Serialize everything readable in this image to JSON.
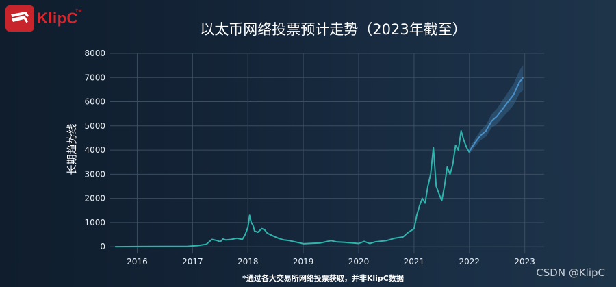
{
  "brand": {
    "name": "KlipC"
  },
  "watermark": "CSDN @KlipC",
  "colors": {
    "line": "#2fb3ad",
    "forecast": "#4a90c8",
    "band": "#3b6e98",
    "grid": "#3a4d61",
    "text": "#e8edf2",
    "brand": "#d8262e"
  },
  "chart_data": {
    "type": "line",
    "title": "以太币网络投票预计走势（2023年截至）",
    "ylabel": "长期趋势线",
    "xlabel": "",
    "footnote": "*通过各大交易所网络投票获取，并非KlipC数据",
    "x_ticks": [
      "2016",
      "2017",
      "2018",
      "2019",
      "2020",
      "2021",
      "2022",
      "2023"
    ],
    "y_ticks": [
      "0",
      "1000",
      "2000",
      "3000",
      "4000",
      "5000",
      "6000",
      "7000",
      "8000"
    ],
    "xlim": [
      2015.5,
      2023.35
    ],
    "ylim": [
      -280,
      8000
    ],
    "grid": true,
    "series": [
      {
        "role": "historical",
        "x": [
          2015.6,
          2016.0,
          2016.5,
          2016.9,
          2017.1,
          2017.25,
          2017.35,
          2017.45,
          2017.5,
          2017.55,
          2017.6,
          2017.7,
          2017.8,
          2017.9,
          2017.95,
          2018.0,
          2018.03,
          2018.06,
          2018.09,
          2018.12,
          2018.18,
          2018.25,
          2018.3,
          2018.35,
          2018.45,
          2018.55,
          2018.65,
          2018.75,
          2018.85,
          2018.95,
          2019.0,
          2019.15,
          2019.3,
          2019.4,
          2019.5,
          2019.6,
          2019.75,
          2019.9,
          2020.0,
          2020.1,
          2020.2,
          2020.3,
          2020.5,
          2020.65,
          2020.8,
          2020.9,
          2021.0,
          2021.05,
          2021.1,
          2021.15,
          2021.2,
          2021.25,
          2021.3,
          2021.35,
          2021.4,
          2021.45,
          2021.5,
          2021.55,
          2021.6,
          2021.65,
          2021.7,
          2021.75,
          2021.8,
          2021.85,
          2021.9,
          2021.95,
          2022.0
        ],
        "y": [
          0,
          5,
          10,
          10,
          50,
          100,
          300,
          250,
          200,
          320,
          280,
          300,
          350,
          300,
          500,
          800,
          1300,
          1000,
          900,
          650,
          600,
          750,
          700,
          560,
          450,
          350,
          280,
          250,
          200,
          150,
          120,
          140,
          150,
          200,
          250,
          200,
          180,
          150,
          130,
          220,
          130,
          200,
          250,
          350,
          400,
          600,
          740,
          1300,
          1700,
          2000,
          1800,
          2500,
          3000,
          4100,
          2500,
          2200,
          1900,
          2500,
          3300,
          3000,
          3400,
          4200,
          4000,
          4800,
          4400,
          4100,
          3900
        ]
      },
      {
        "role": "forecast",
        "x": [
          2022.0,
          2022.1,
          2022.2,
          2022.3,
          2022.4,
          2022.5,
          2022.6,
          2022.7,
          2022.8,
          2022.9,
          2022.97
        ],
        "y": [
          3950,
          4300,
          4600,
          4800,
          5200,
          5400,
          5700,
          6000,
          6300,
          6800,
          7000
        ]
      }
    ]
  }
}
